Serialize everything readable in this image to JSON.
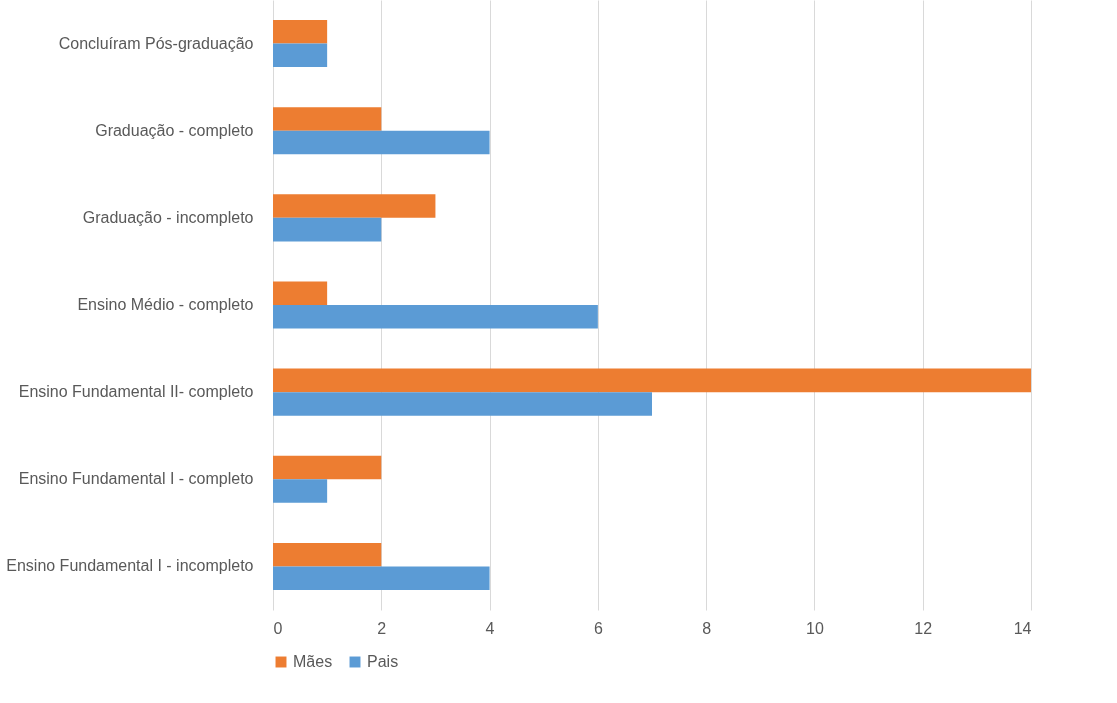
{
  "chart_data": {
    "type": "bar",
    "orientation": "horizontal",
    "categories": [
      "Concluíram Pós-graduação",
      "Graduação - completo",
      "Graduação - incompleto",
      "Ensino Médio - completo",
      "Ensino Fundamental II- completo",
      "Ensino Fundamental I - completo",
      "Ensino Fundamental I - incompleto"
    ],
    "series": [
      {
        "name": "Mães",
        "color": "#ed7d31",
        "values": [
          1,
          2,
          3,
          1,
          14,
          2,
          2
        ]
      },
      {
        "name": "Pais",
        "color": "#5b9bd5",
        "values": [
          1,
          4,
          2,
          6,
          7,
          1,
          4
        ]
      }
    ],
    "xlim": [
      0,
      14
    ],
    "xticks": [
      0,
      2,
      4,
      6,
      8,
      10,
      12,
      14
    ],
    "grid": "x",
    "legend": "bottom"
  }
}
